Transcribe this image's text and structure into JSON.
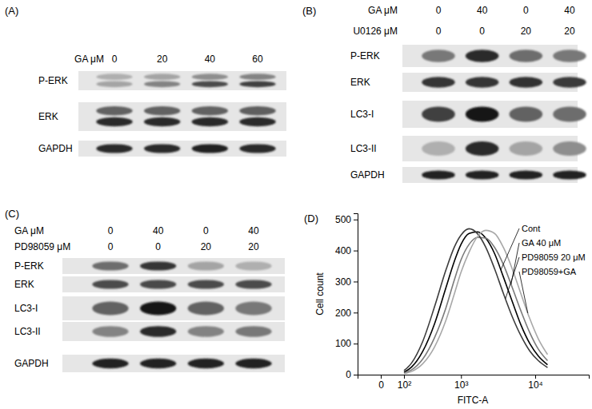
{
  "blots": [
    {
      "panel": "(A)",
      "conditions": [
        {
          "label": "GA μM",
          "values": [
            0,
            20,
            40,
            60
          ]
        }
      ],
      "rows": [
        {
          "name": "P-ERK",
          "intensity": [
            [
              0.25,
              0.3
            ],
            [
              0.3,
              0.45
            ],
            [
              0.4,
              0.7
            ],
            [
              0.45,
              0.75
            ]
          ]
        },
        {
          "name": "ERK",
          "intensity": [
            [
              0.6,
              0.85
            ],
            [
              0.6,
              0.85
            ],
            [
              0.6,
              0.85
            ],
            [
              0.62,
              0.85
            ]
          ]
        },
        {
          "name": "GAPDH",
          "intensity": [
            0.85,
            0.85,
            0.88,
            0.85
          ]
        }
      ]
    },
    {
      "panel": "(B)",
      "conditions": [
        {
          "label": "GA μM",
          "values": [
            0,
            40,
            0,
            40
          ]
        },
        {
          "label": "U0126 μM",
          "values": [
            0,
            0,
            20,
            20
          ]
        }
      ],
      "rows": [
        {
          "name": "P-ERK",
          "intensity": [
            0.5,
            0.85,
            0.55,
            0.5
          ]
        },
        {
          "name": "ERK",
          "intensity": [
            0.8,
            0.8,
            0.82,
            0.78
          ]
        },
        {
          "name": "LC3-I",
          "intensity": [
            0.75,
            0.95,
            0.6,
            0.55
          ]
        },
        {
          "name": "LC3-II",
          "intensity": [
            0.25,
            0.85,
            0.3,
            0.4
          ]
        },
        {
          "name": "GAPDH",
          "intensity": [
            0.9,
            0.9,
            0.9,
            0.9
          ]
        }
      ]
    },
    {
      "panel": "(C)",
      "conditions": [
        {
          "label": "GA μM",
          "values": [
            0,
            40,
            0,
            40
          ]
        },
        {
          "label": "PD98059 μM",
          "values": [
            0,
            0,
            20,
            20
          ]
        }
      ],
      "rows": [
        {
          "name": "P-ERK",
          "intensity": [
            0.55,
            0.8,
            0.3,
            0.25
          ]
        },
        {
          "name": "ERK",
          "intensity": [
            0.7,
            0.72,
            0.7,
            0.7
          ]
        },
        {
          "name": "LC3-I",
          "intensity": [
            0.6,
            0.95,
            0.6,
            0.5
          ]
        },
        {
          "name": "LC3-II",
          "intensity": [
            0.45,
            0.85,
            0.45,
            0.5
          ]
        },
        {
          "name": "GAPDH",
          "intensity": [
            0.9,
            0.9,
            0.9,
            0.9
          ]
        }
      ]
    }
  ],
  "chart_data": {
    "type": "line",
    "title": "(D)",
    "x_label": "FITC-A",
    "y_label": "Cell count",
    "log": "x",
    "x": [
      100,
      150,
      250,
      400,
      600,
      800,
      1000,
      1300,
      1700,
      2200,
      2900,
      3800,
      5000,
      6500,
      8500,
      11000,
      14500
    ],
    "series": [
      {
        "name": "Cont",
        "color": "#000000",
        "values": [
          8,
          24,
          75,
          165,
          280,
          365,
          420,
          455,
          460,
          440,
          390,
          315,
          235,
          160,
          100,
          60,
          32
        ]
      },
      {
        "name": "GA 40 μM",
        "color": "#7a7a7a",
        "values": [
          5,
          15,
          50,
          120,
          215,
          305,
          370,
          420,
          442,
          440,
          410,
          355,
          280,
          205,
          135,
          82,
          45
        ]
      },
      {
        "name": "PD98059 20 μM",
        "color": "#3c3c3c",
        "values": [
          13,
          37,
          107,
          220,
          337,
          411,
          450,
          470,
          454,
          411,
          341,
          262,
          186,
          125,
          76,
          45,
          23
        ]
      },
      {
        "name": "PD98059+GA",
        "color": "#a8a8a8",
        "values": [
          3,
          10,
          35,
          90,
          175,
          260,
          330,
          395,
          445,
          465,
          455,
          410,
          340,
          260,
          180,
          115,
          65
        ]
      }
    ],
    "xlim": [
      -100,
      50000
    ],
    "ylim": [
      0,
      520
    ],
    "xticks": [
      0,
      {
        "value": 100,
        "label": "10²"
      },
      {
        "value": 1000,
        "label": "10³"
      },
      {
        "value": 10000,
        "label": "10⁴"
      }
    ],
    "yticks": [
      0,
      100,
      200,
      300,
      400,
      500
    ]
  }
}
